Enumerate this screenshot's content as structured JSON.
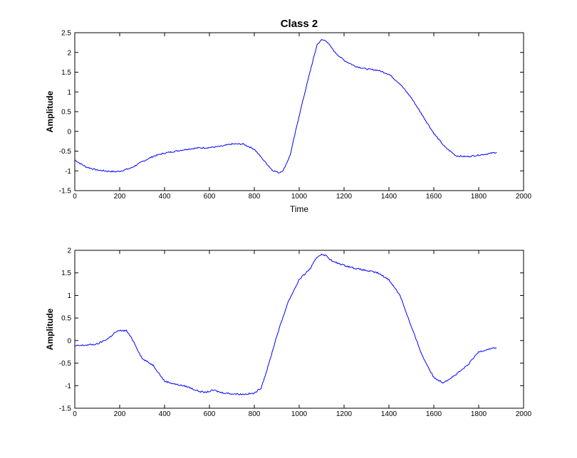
{
  "figure": {
    "background": "#ffffff",
    "line_color": "#0000ff"
  },
  "chart_data": [
    {
      "type": "line",
      "title": "Class 2",
      "xlabel": "Time",
      "ylabel": "Amplitude",
      "xlim": [
        0,
        2000
      ],
      "ylim": [
        -1.5,
        2.5
      ],
      "xticks": [
        0,
        200,
        400,
        600,
        800,
        1000,
        1200,
        1400,
        1600,
        1800,
        2000
      ],
      "yticks": [
        -1.5,
        -1,
        -0.5,
        0,
        0.5,
        1,
        1.5,
        2,
        2.5
      ],
      "xtick_labels": [
        "0",
        "200",
        "400",
        "600",
        "800",
        "1000",
        "1200",
        "1400",
        "1600",
        "1800",
        "2000"
      ],
      "ytick_labels": [
        "-1.5",
        "-1",
        "-0.5",
        "0",
        "0.5",
        "1",
        "1.5",
        "2",
        "2.5"
      ],
      "grid": false,
      "series": [
        {
          "color": "#0000ff",
          "x": [
            0,
            20,
            50,
            100,
            150,
            180,
            200,
            250,
            300,
            350,
            400,
            450,
            500,
            550,
            600,
            650,
            700,
            750,
            800,
            840,
            880,
            910,
            930,
            960,
            1000,
            1050,
            1080,
            1100,
            1120,
            1140,
            1160,
            1200,
            1250,
            1300,
            1350,
            1400,
            1450,
            1500,
            1550,
            1600,
            1650,
            1700,
            1750,
            1800,
            1850,
            1880
          ],
          "y": [
            -0.72,
            -0.8,
            -0.9,
            -0.98,
            -1.01,
            -1.02,
            -1.01,
            -0.93,
            -0.77,
            -0.63,
            -0.55,
            -0.5,
            -0.45,
            -0.42,
            -0.41,
            -0.38,
            -0.32,
            -0.32,
            -0.45,
            -0.72,
            -0.98,
            -1.05,
            -0.98,
            -0.6,
            0.4,
            1.55,
            2.2,
            2.32,
            2.3,
            2.15,
            2.0,
            1.8,
            1.65,
            1.58,
            1.55,
            1.45,
            1.2,
            0.85,
            0.4,
            -0.05,
            -0.4,
            -0.62,
            -0.64,
            -0.6,
            -0.56,
            -0.53
          ]
        }
      ]
    },
    {
      "type": "line",
      "title": "",
      "xlabel": "",
      "ylabel": "Amplitude",
      "xlim": [
        0,
        2000
      ],
      "ylim": [
        -1.5,
        2
      ],
      "xticks": [
        0,
        200,
        400,
        600,
        800,
        1000,
        1200,
        1400,
        1600,
        1800,
        2000
      ],
      "yticks": [
        -1.5,
        -1,
        -0.5,
        0,
        0.5,
        1,
        1.5,
        2
      ],
      "xtick_labels": [
        "0",
        "200",
        "400",
        "600",
        "800",
        "1000",
        "1200",
        "1400",
        "1600",
        "1800",
        "2000"
      ],
      "ytick_labels": [
        "-1.5",
        "-1",
        "-0.5",
        "0",
        "0.5",
        "1",
        "1.5",
        "2"
      ],
      "grid": false,
      "series": [
        {
          "color": "#0000ff",
          "x": [
            0,
            50,
            100,
            150,
            180,
            200,
            230,
            260,
            300,
            350,
            400,
            450,
            500,
            550,
            580,
            620,
            650,
            700,
            750,
            800,
            830,
            860,
            900,
            950,
            1000,
            1050,
            1080,
            1100,
            1120,
            1150,
            1200,
            1250,
            1300,
            1350,
            1400,
            1450,
            1500,
            1550,
            1600,
            1640,
            1670,
            1700,
            1750,
            1800,
            1850,
            1880
          ],
          "y": [
            -0.12,
            -0.1,
            -0.08,
            0.05,
            0.18,
            0.22,
            0.22,
            0.0,
            -0.4,
            -0.55,
            -0.9,
            -0.97,
            -1.02,
            -1.12,
            -1.15,
            -1.1,
            -1.15,
            -1.18,
            -1.19,
            -1.17,
            -1.05,
            -0.6,
            0.1,
            0.85,
            1.35,
            1.6,
            1.85,
            1.92,
            1.88,
            1.75,
            1.67,
            1.6,
            1.55,
            1.5,
            1.35,
            1.0,
            0.3,
            -0.35,
            -0.82,
            -0.93,
            -0.85,
            -0.75,
            -0.55,
            -0.25,
            -0.18,
            -0.16
          ]
        }
      ]
    }
  ]
}
